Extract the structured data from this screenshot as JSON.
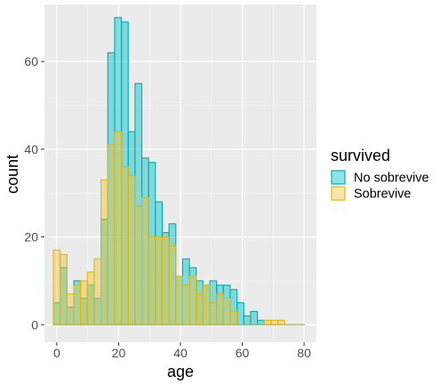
{
  "chart_data": {
    "type": "bar",
    "subtype": "overlaid-histogram",
    "xlabel": "age",
    "ylabel": "count",
    "xlim": [
      -4,
      84
    ],
    "ylim": [
      -4,
      73
    ],
    "xticks": [
      0,
      20,
      40,
      60,
      80
    ],
    "yticks": [
      0,
      20,
      40,
      60
    ],
    "bin_width": 2.2,
    "bin_starts": [
      -1.1,
      1.1,
      3.3,
      5.5,
      7.7,
      9.9,
      12.1,
      14.3,
      16.5,
      18.7,
      20.9,
      23.1,
      25.3,
      27.5,
      29.7,
      31.9,
      34.1,
      36.3,
      38.5,
      40.7,
      42.9,
      45.1,
      47.3,
      49.5,
      51.7,
      53.9,
      56.1,
      58.3,
      60.5,
      62.7,
      64.9,
      67.1,
      69.3,
      71.5,
      73.7,
      75.9,
      78.1
    ],
    "grid": true,
    "legend": {
      "title": "survived",
      "position": "right"
    },
    "series": [
      {
        "name": "No sobrevive",
        "fill": "#00BFC4",
        "stroke": "#00ADB8",
        "values": [
          5,
          13,
          4,
          10,
          6,
          9,
          6,
          24,
          62,
          70,
          69,
          44,
          55,
          38,
          37,
          28,
          21,
          23,
          11,
          15,
          13,
          10,
          9,
          10,
          9,
          9,
          8,
          5,
          2,
          3,
          1,
          0,
          0,
          0,
          0,
          0,
          0
        ]
      },
      {
        "name": "Sobrevive",
        "fill": "#E8C547",
        "stroke": "#E5B800",
        "values": [
          17,
          16,
          7,
          9,
          10,
          12,
          15,
          33,
          41,
          44,
          36,
          34,
          27,
          29,
          20,
          20,
          20,
          18,
          11,
          9,
          11,
          7,
          9,
          5,
          7,
          6,
          3,
          0,
          0,
          0,
          0,
          1,
          1,
          1,
          0,
          0,
          0
        ]
      }
    ]
  }
}
